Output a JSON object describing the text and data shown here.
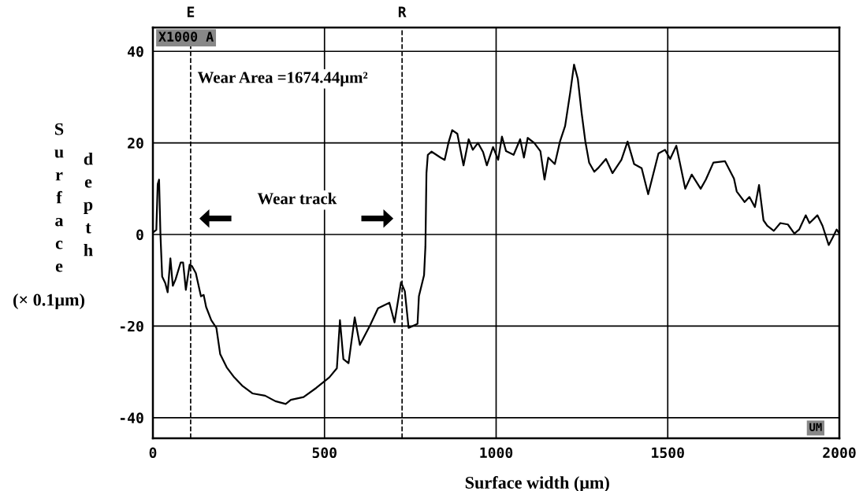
{
  "chart_data": {
    "type": "line",
    "xlabel": "Surface width (μm)",
    "ylabel": "Surface depth (× 0.1μm)",
    "xlim": [
      0,
      2000
    ],
    "ylim": [
      -44.5,
      45.2
    ],
    "xticks": [
      0,
      500,
      1000,
      1500,
      2000
    ],
    "yticks": [
      -40,
      -20,
      0,
      20,
      40
    ],
    "grid": true,
    "ref_lines": [
      {
        "axis": "x",
        "value": 110,
        "label": "E",
        "line_style": "dashed",
        "color": "#000000"
      },
      {
        "axis": "x",
        "value": 726,
        "label": "R",
        "line_style": "dashed",
        "color": "#000000"
      }
    ],
    "annotations": [
      "Wear Area =1674.44μm²",
      "Wear track",
      "X1000 A",
      "UM"
    ],
    "series": [
      {
        "color": "#000000",
        "x": [
          1,
          10,
          14,
          18,
          22,
          27,
          36,
          43,
          51,
          58,
          66,
          81,
          88,
          96,
          107,
          114,
          125,
          140,
          148,
          155,
          170,
          185,
          196,
          215,
          237,
          260,
          290,
          327,
          357,
          387,
          402,
          439,
          476,
          514,
          536,
          545,
          555,
          570,
          588,
          603,
          633,
          656,
          689,
          704,
          723,
          734,
          745,
          771,
          775,
          790,
          794,
          797,
          801,
          812,
          838,
          850,
          861,
          872,
          887,
          905,
          920,
          932,
          947,
          962,
          973,
          991,
          1006,
          1017,
          1029,
          1051,
          1070,
          1081,
          1092,
          1111,
          1129,
          1141,
          1152,
          1171,
          1186,
          1201,
          1216,
          1227,
          1238,
          1249,
          1260,
          1271,
          1286,
          1297,
          1320,
          1339,
          1365,
          1383,
          1402,
          1424,
          1443,
          1473,
          1492,
          1507,
          1525,
          1551,
          1570,
          1596,
          1611,
          1633,
          1667,
          1693,
          1701,
          1724,
          1738,
          1754,
          1766,
          1779,
          1790,
          1809,
          1828,
          1850,
          1869,
          1883,
          1902,
          1913,
          1936,
          1951,
          1969,
          1981,
          1992,
          2000
        ],
        "values": [
          0.5,
          1,
          11,
          12,
          0,
          -9.2,
          -10.6,
          -12.6,
          -5.2,
          -11.2,
          -9.8,
          -6.1,
          -6.1,
          -12.1,
          -6.6,
          -6.9,
          -8.4,
          -13.5,
          -13.2,
          -15.8,
          -18.7,
          -20.4,
          -26.1,
          -29.0,
          -31.2,
          -33.0,
          -34.7,
          -35.2,
          -36.4,
          -37.0,
          -36.1,
          -35.5,
          -33.5,
          -31.2,
          -29.2,
          -18.7,
          -27.2,
          -28.1,
          -18.1,
          -24.1,
          -19.8,
          -16.1,
          -14.9,
          -19.2,
          -10.4,
          -12.4,
          -20.4,
          -19.5,
          -13.5,
          -8.9,
          -2.6,
          13.4,
          17.4,
          18.1,
          16.8,
          16.3,
          20.0,
          22.8,
          22.0,
          15.1,
          20.8,
          18.5,
          20.0,
          18.0,
          15.1,
          19.1,
          16.3,
          21.4,
          18.2,
          17.4,
          20.8,
          16.8,
          21.1,
          20.0,
          18.2,
          12.0,
          16.8,
          15.4,
          20.3,
          23.7,
          31.1,
          37.1,
          34.0,
          26.6,
          20.3,
          15.7,
          13.7,
          14.5,
          16.5,
          13.4,
          16.3,
          20.3,
          15.4,
          14.5,
          8.8,
          17.7,
          18.5,
          16.5,
          19.4,
          10.0,
          13.1,
          10.0,
          12.0,
          15.7,
          16.0,
          12.2,
          9.4,
          7.1,
          8.2,
          6.0,
          10.8,
          3.1,
          1.9,
          0.8,
          2.5,
          2.2,
          0.2,
          1.1,
          4.2,
          2.5,
          4.2,
          1.9,
          -2.3,
          -0.6,
          1.1,
          0.2
        ]
      }
    ]
  }
}
